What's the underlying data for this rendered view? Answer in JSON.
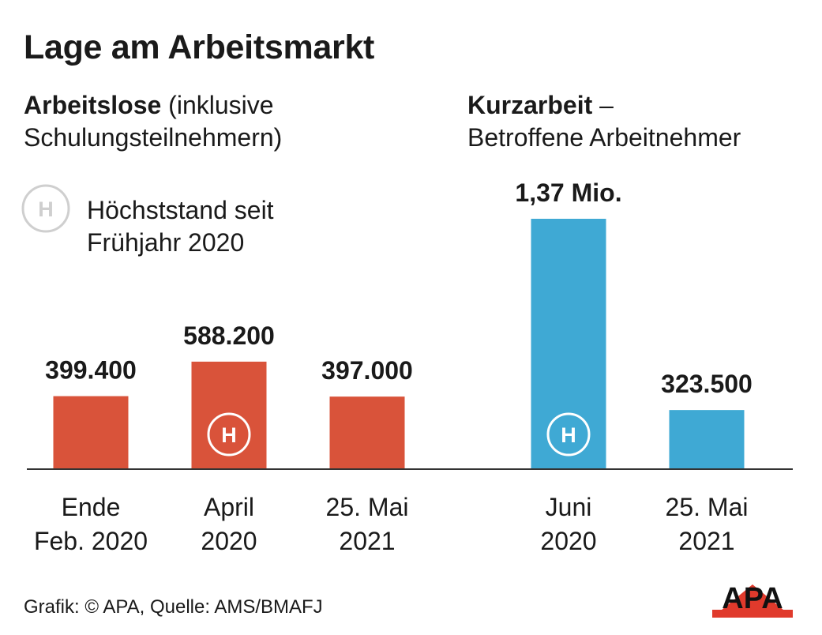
{
  "title": "Lage am Arbeitsmarkt",
  "left_panel": {
    "heading_bold": "Arbeitslose",
    "heading_rest": " (inklusive",
    "heading_line2": "Schulungsteilnehmern)"
  },
  "right_panel": {
    "heading_bold": "Kurzarbeit",
    "heading_rest": " –",
    "heading_line2": "Betroffene Arbeitnehmer"
  },
  "legend": {
    "symbol": "H",
    "line1": "Höchststand seit",
    "line2": "Frühjahr 2020"
  },
  "footer": "Grafik: © APA, Quelle: AMS/BMAFJ",
  "logo_text": "APA",
  "colors": {
    "arbeitslose": "#d9533a",
    "kurzarbeit": "#3fa9d4",
    "axis": "#333333",
    "legend_circle": "#cfcfcf"
  },
  "chart_data": [
    {
      "type": "bar",
      "title": "Arbeitslose (inklusive Schulungsteilnehmern)",
      "categories": [
        [
          "Ende",
          "Feb. 2020"
        ],
        [
          "April",
          "2020"
        ],
        [
          "25. Mai",
          "2021"
        ]
      ],
      "values": [
        399400,
        588200,
        397000
      ],
      "value_labels": [
        "399.400",
        "588.200",
        "397.000"
      ],
      "highlight": [
        false,
        true,
        false
      ],
      "color": "#d9533a"
    },
    {
      "type": "bar",
      "title": "Kurzarbeit – Betroffene Arbeitnehmer",
      "categories": [
        [
          "Juni",
          "2020"
        ],
        [
          "25. Mai",
          "2021"
        ]
      ],
      "values": [
        1370000,
        323500
      ],
      "value_labels": [
        "1,37 Mio.",
        "323.500"
      ],
      "highlight": [
        true,
        false
      ],
      "color": "#3fa9d4"
    }
  ]
}
